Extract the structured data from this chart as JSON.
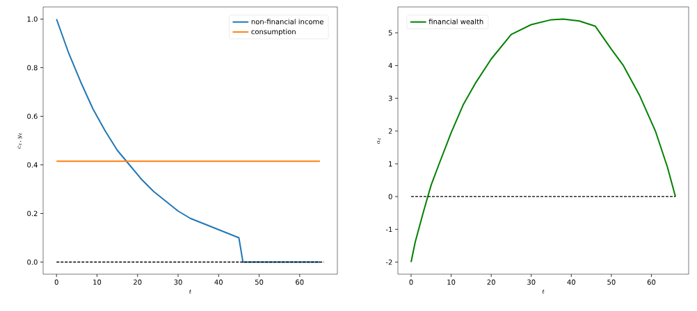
{
  "chart_data": [
    {
      "type": "line",
      "xlabel": "t",
      "ylabel": "c_t, y_t",
      "xlim": [
        -3.3,
        69.3
      ],
      "ylim": [
        -0.05,
        1.05
      ],
      "xticks": [
        0,
        10,
        20,
        30,
        40,
        50,
        60
      ],
      "yticks": [
        {
          "value": 0,
          "label": "0.0"
        },
        {
          "value": 0.2,
          "label": "0.2"
        },
        {
          "value": 0.4,
          "label": "0.4"
        },
        {
          "value": 0.6,
          "label": "0.6"
        },
        {
          "value": 0.8,
          "label": "0.8"
        },
        {
          "value": 1,
          "label": "1.0"
        }
      ],
      "legend": "top right",
      "grid": false,
      "series": [
        {
          "name": "non-financial income",
          "color": "#1f77b4",
          "x": [
            0,
            3,
            6,
            9,
            12,
            15,
            18,
            21,
            24,
            27,
            30,
            33,
            36,
            39,
            42,
            45,
            46,
            65
          ],
          "values": [
            1.0,
            0.86,
            0.74,
            0.63,
            0.54,
            0.46,
            0.4,
            0.34,
            0.29,
            0.25,
            0.21,
            0.18,
            0.16,
            0.14,
            0.12,
            0.1,
            0,
            0
          ]
        },
        {
          "name": "consumption",
          "color": "#ff7f0e",
          "x": [
            0,
            65
          ],
          "values": [
            0.415,
            0.415
          ]
        },
        {
          "color": "#000000",
          "line_style": "dashed",
          "x": [
            0,
            66
          ],
          "values": [
            0,
            0
          ]
        }
      ]
    },
    {
      "type": "line",
      "xlabel": "t",
      "ylabel": "a_t",
      "xlim": [
        -3.3,
        69.3
      ],
      "ylim": [
        -2.37,
        5.79
      ],
      "xticks": [
        0,
        10,
        20,
        30,
        40,
        50,
        60
      ],
      "yticks": [
        -2,
        -1,
        0,
        1,
        2,
        3,
        4,
        5
      ],
      "legend": "top left",
      "grid": false,
      "series": [
        {
          "name": "financial wealth",
          "color": "#008000",
          "x": [
            0,
            1,
            2,
            3,
            4,
            5,
            7,
            10,
            13,
            16,
            20,
            25,
            30,
            35,
            38,
            42,
            46,
            50,
            53,
            57,
            61,
            64,
            66
          ],
          "values": [
            -2,
            -1.4,
            -0.95,
            -0.5,
            -0.07,
            0.35,
            1.0,
            1.95,
            2.8,
            3.45,
            4.2,
            4.95,
            5.25,
            5.4,
            5.42,
            5.36,
            5.2,
            4.5,
            4.0,
            3.1,
            2.0,
            0.9,
            0
          ]
        },
        {
          "color": "#000000",
          "line_style": "dashed",
          "x": [
            0,
            66
          ],
          "values": [
            0,
            0
          ]
        }
      ]
    }
  ]
}
